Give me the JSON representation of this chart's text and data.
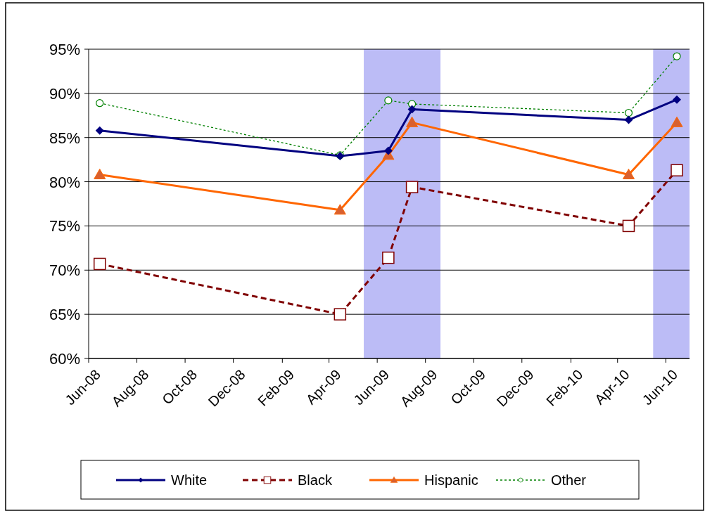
{
  "chart_data": {
    "type": "line",
    "ylim": [
      60,
      95
    ],
    "yticks": [
      {
        "value": 60,
        "label": "60%"
      },
      {
        "value": 65,
        "label": "65%"
      },
      {
        "value": 70,
        "label": "70%"
      },
      {
        "value": 75,
        "label": "75%"
      },
      {
        "value": 80,
        "label": "80%"
      },
      {
        "value": 85,
        "label": "85%"
      },
      {
        "value": 90,
        "label": "90%"
      },
      {
        "value": 95,
        "label": "95%"
      }
    ],
    "xlim": [
      "2008-06-01",
      "2010-07-01"
    ],
    "xticks": [
      {
        "value": "2008-06",
        "label": "Jun-08"
      },
      {
        "value": "2008-08",
        "label": "Aug-08"
      },
      {
        "value": "2008-10",
        "label": "Oct-08"
      },
      {
        "value": "2008-12",
        "label": "Dec-08"
      },
      {
        "value": "2009-02",
        "label": "Feb-09"
      },
      {
        "value": "2009-04",
        "label": "Apr-09"
      },
      {
        "value": "2009-06",
        "label": "Jun-09"
      },
      {
        "value": "2009-08",
        "label": "Aug-09"
      },
      {
        "value": "2009-10",
        "label": "Oct-09"
      },
      {
        "value": "2009-12",
        "label": "Dec-09"
      },
      {
        "value": "2010-02",
        "label": "Feb-10"
      },
      {
        "value": "2010-04",
        "label": "Apr-10"
      },
      {
        "value": "2010-06",
        "label": "Jun-10"
      }
    ],
    "x": [
      "2008-06-15",
      "2009-04-15",
      "2009-06-15",
      "2009-07-15",
      "2010-04-15",
      "2010-06-15"
    ],
    "grid": "y",
    "legend": "bottom",
    "bands": [
      {
        "axis": "x",
        "from": "2009-05-15",
        "to": "2009-08-20",
        "color": "#bcbcf6"
      },
      {
        "axis": "x",
        "from": "2010-05-16",
        "to": "2010-07-01",
        "color": "#bcbcf6"
      }
    ],
    "series": [
      {
        "name": "White",
        "color": "#000080",
        "values": [
          85.8,
          82.9,
          83.5,
          88.2,
          87.0,
          89.3
        ],
        "marker": "diamond",
        "line_style": "solid"
      },
      {
        "name": "Black",
        "color": "#800000",
        "values": [
          70.7,
          65.0,
          71.4,
          79.4,
          75.0,
          81.3
        ],
        "marker": "square",
        "line_style": "dashed"
      },
      {
        "name": "Hispanic",
        "color": "#ff6600",
        "values": [
          80.8,
          76.8,
          83.0,
          86.7,
          80.8,
          86.7
        ],
        "marker": "triangle",
        "line_style": "solid"
      },
      {
        "name": "Other",
        "color": "#008000",
        "values": [
          88.9,
          83.0,
          89.2,
          88.8,
          87.8,
          94.2
        ],
        "marker": "circle",
        "line_style": "dotted"
      }
    ]
  }
}
